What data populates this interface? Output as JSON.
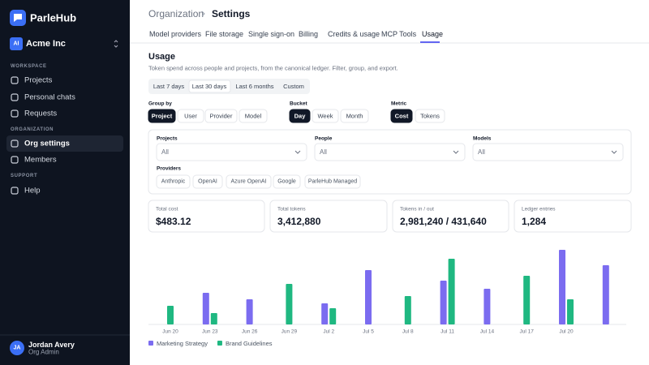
{
  "sidebar": {
    "brand": "ParleHub",
    "org_initials": "AI",
    "org": "Acme Inc",
    "sections": [
      {
        "title": "WORKSPACE",
        "items": [
          "Projects",
          "Personal chats",
          "Requests"
        ]
      },
      {
        "title": "ORGANIZATION",
        "items": [
          "Org settings",
          "Members"
        ]
      },
      {
        "title": "SUPPORT",
        "items": [
          "Help"
        ]
      }
    ],
    "user": {
      "initials": "JA",
      "name": "Jordan Avery",
      "role": "Org Admin"
    }
  },
  "header": {
    "breadcrumb": [
      "Organization",
      "Settings"
    ],
    "tabs": [
      "Model providers",
      "File storage",
      "Single sign-on",
      "Billing",
      "Credits & usage",
      "MCP Tools",
      "Usage"
    ]
  },
  "usage": {
    "title": "Usage",
    "subtitle": "Token spend across people and projects, from the canonical ledger. Filter, group, and export.",
    "ranges": [
      "Last 7 days",
      "Last 30 days",
      "Last 6 months",
      "Custom"
    ],
    "group_by": {
      "label": "Group by",
      "options": [
        "Project",
        "User",
        "Provider",
        "Model"
      ]
    },
    "bucket": {
      "label": "Bucket",
      "options": [
        "Day",
        "Week",
        "Month"
      ]
    },
    "metric": {
      "label": "Metric",
      "options": [
        "Cost",
        "Tokens"
      ]
    },
    "filters": {
      "selects": [
        {
          "label": "Projects",
          "value": "All"
        },
        {
          "label": "People",
          "value": "All"
        },
        {
          "label": "Models",
          "value": "All"
        }
      ],
      "providers_label": "Providers",
      "providers": [
        "Anthropic",
        "OpenAI",
        "Azure OpenAI",
        "Google",
        "ParleHub Managed"
      ]
    },
    "stats": [
      {
        "label": "Total cost",
        "value": "$483.12"
      },
      {
        "label": "Total tokens",
        "value": "3,412,880"
      },
      {
        "label": "Tokens in / out",
        "value": "2,981,240 / 431,640"
      },
      {
        "label": "Ledger entries",
        "value": "1,284"
      }
    ]
  },
  "chart_data": {
    "type": "bar",
    "categories": [
      "Jun 20",
      "Jun 23",
      "Jun 26",
      "Jun 29",
      "Jul 2",
      "Jul 5",
      "Jul 8",
      "Jul 11",
      "Jul 14",
      "Jul 17",
      "Jul 20",
      null
    ],
    "ylim": [
      0,
      100
    ],
    "series": [
      {
        "name": "Marketing Strategy",
        "color": "#7b6cf0",
        "values": [
          null,
          39,
          31,
          null,
          26,
          67,
          null,
          54,
          44,
          null,
          92,
          73
        ]
      },
      {
        "name": "Brand Guidelines",
        "color": "#1fb881",
        "values": [
          23,
          14,
          null,
          50,
          20,
          null,
          35,
          81,
          null,
          60,
          31,
          null
        ]
      }
    ]
  }
}
